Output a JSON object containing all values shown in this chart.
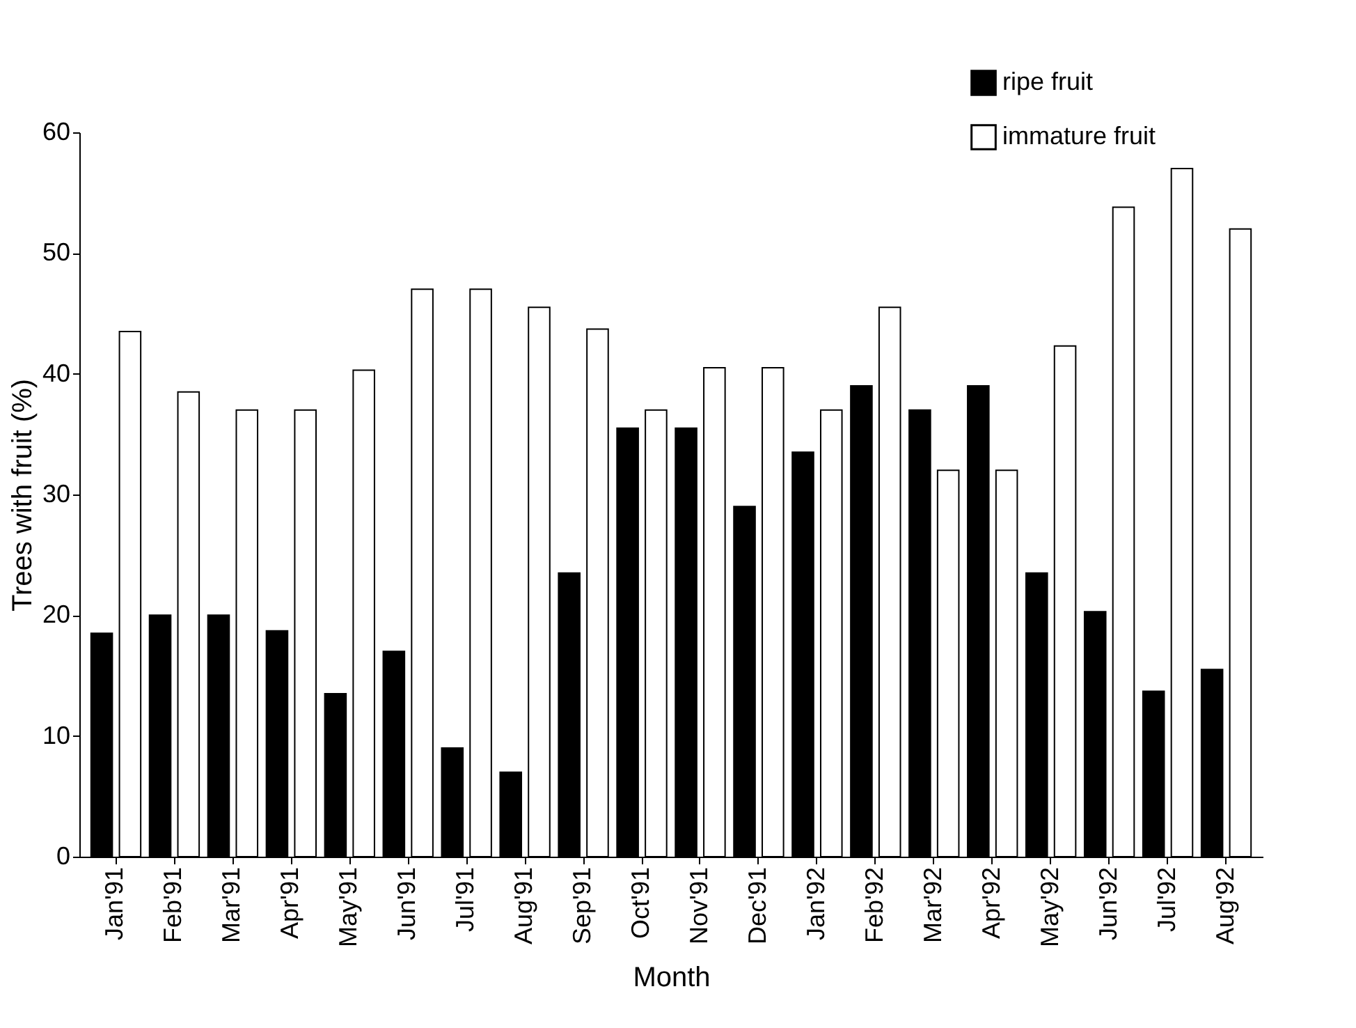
{
  "chart_data": {
    "type": "bar",
    "xlabel": "Month",
    "ylabel": "Trees with fruit (%)",
    "categories": [
      "Jan'91",
      "Feb'91",
      "Mar'91",
      "Apr'91",
      "May'91",
      "Jun'91",
      "Jul'91",
      "Aug'91",
      "Sep'91",
      "Oct'91",
      "Nov'91",
      "Dec'91",
      "Jan'92",
      "Feb'92",
      "Mar'92",
      "Apr'92",
      "May'92",
      "Jun'92",
      "Jul'92",
      "Aug'92"
    ],
    "series": [
      {
        "name": "ripe fruit",
        "color": "#000000",
        "values": [
          18.5,
          20,
          20,
          18.7,
          13.5,
          17,
          9,
          7,
          23.5,
          35.5,
          35.5,
          29,
          33.5,
          39,
          37,
          39,
          23.5,
          20.3,
          13.7,
          15.5
        ]
      },
      {
        "name": "immature fruit",
        "color": "#ffffff",
        "values": [
          43.5,
          38.5,
          37,
          37,
          40.3,
          47,
          47,
          45.5,
          43.7,
          37,
          40.5,
          40.5,
          37,
          45.5,
          32,
          32,
          42.3,
          53.8,
          57,
          52
        ]
      }
    ],
    "ylim": [
      0,
      60
    ],
    "yticks": [
      0,
      10,
      20,
      30,
      40,
      50,
      60
    ],
    "grid": false,
    "legend": "top right"
  }
}
